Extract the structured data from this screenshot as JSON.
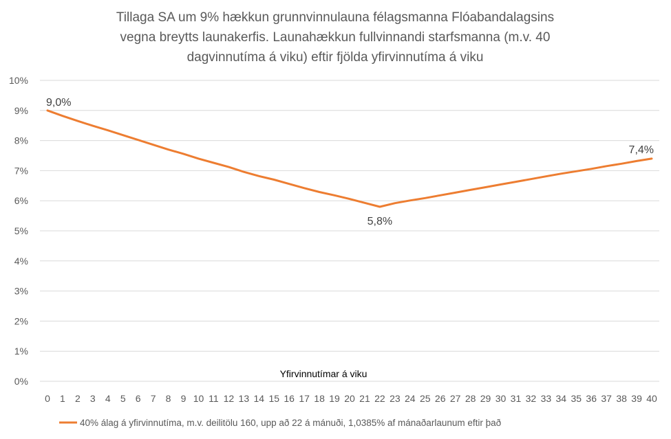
{
  "chart_data": {
    "type": "line",
    "title_lines": [
      "Tillaga SA um 9% hækkun grunnvinnulauna félagsmanna Flóabandalagsins",
      "vegna breytts launakerfis. Launahækkun fullvinnandi starfsmanna (m.v. 40",
      "dagvinnutíma á viku) eftir fjölda yfirvinnutíma á viku"
    ],
    "xlabel": "Yfirvinnutímar á viku",
    "ylabel": "",
    "ylim": [
      0,
      10
    ],
    "y_ticks": [
      "0%",
      "1%",
      "2%",
      "3%",
      "4%",
      "5%",
      "6%",
      "7%",
      "8%",
      "9%",
      "10%"
    ],
    "x": [
      0,
      1,
      2,
      3,
      4,
      5,
      6,
      7,
      8,
      9,
      10,
      11,
      12,
      13,
      14,
      15,
      16,
      17,
      18,
      19,
      20,
      21,
      22,
      23,
      24,
      25,
      26,
      27,
      28,
      29,
      30,
      31,
      32,
      33,
      34,
      35,
      36,
      37,
      38,
      39,
      40
    ],
    "grid": true,
    "legend_position": "bottom",
    "series": [
      {
        "name": "40% álag á yfirvinnutíma, m.v. deilitölu 160, upp að 22 á mánuði, 1,0385% af mánaðarlaunum eftir það",
        "color": "#ed7d31",
        "values": [
          9.0,
          8.82,
          8.65,
          8.49,
          8.34,
          8.18,
          8.02,
          7.86,
          7.7,
          7.56,
          7.4,
          7.26,
          7.12,
          6.96,
          6.82,
          6.7,
          6.56,
          6.42,
          6.29,
          6.18,
          6.06,
          5.93,
          5.8,
          5.92,
          6.01,
          6.09,
          6.18,
          6.27,
          6.36,
          6.45,
          6.54,
          6.63,
          6.72,
          6.81,
          6.9,
          6.98,
          7.06,
          7.15,
          7.23,
          7.32,
          7.4
        ]
      }
    ],
    "data_labels": [
      {
        "x": 0,
        "text": "9,0%"
      },
      {
        "x": 22,
        "text": "5,8%"
      },
      {
        "x": 40,
        "text": "7,4%"
      }
    ]
  }
}
